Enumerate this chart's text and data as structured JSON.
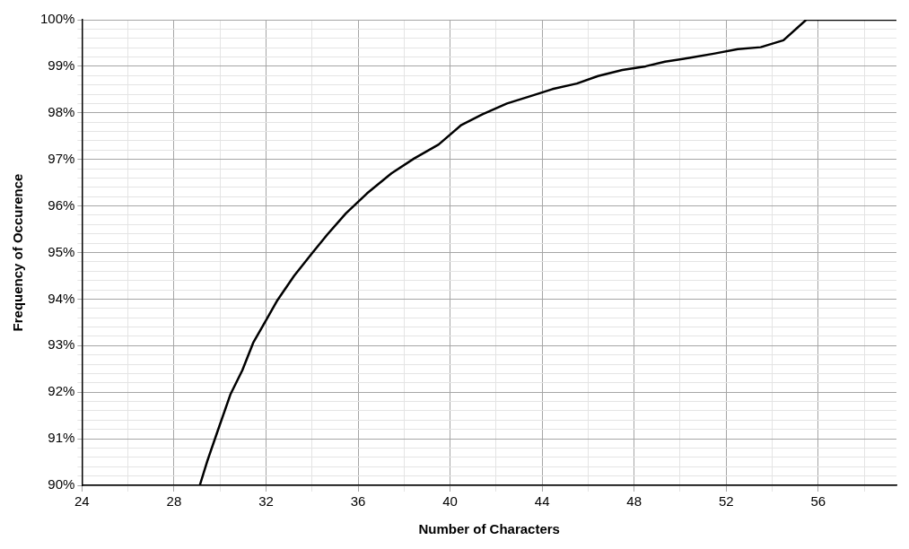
{
  "chart_data": {
    "type": "line",
    "xlabel": "Number of Characters",
    "ylabel": "Frequency of Occurence",
    "x": [
      29.12,
      29.46,
      29.92,
      30.45,
      30.97,
      31.44,
      31.97,
      32.5,
      33.22,
      34.01,
      34.67,
      35.47,
      36.39,
      37.45,
      38.44,
      39.5,
      40.49,
      41.41,
      42.47,
      43.5,
      44.45,
      45.51,
      46.43,
      47.49,
      48.5,
      49.34,
      50.4,
      51.45,
      52.51,
      53.5,
      54.49,
      55.48,
      56.5,
      57.5,
      58.5,
      59.4
    ],
    "series": [
      {
        "color": "#000000",
        "values": [
          90.0,
          90.54,
          91.2,
          91.95,
          92.47,
          93.06,
          93.52,
          93.98,
          94.5,
          94.99,
          95.39,
          95.84,
          96.27,
          96.7,
          97.02,
          97.32,
          97.74,
          97.97,
          98.2,
          98.36,
          98.51,
          98.63,
          98.79,
          98.92,
          99.0,
          99.1,
          99.18,
          99.27,
          99.37,
          99.41,
          99.56,
          100,
          100,
          100,
          100,
          100
        ]
      }
    ],
    "xlim": [
      24,
      59.4
    ],
    "xticks": [
      24,
      {
        "value": 26,
        "label": null
      },
      28,
      {
        "value": 30,
        "label": null
      },
      32,
      {
        "value": 34,
        "label": null
      },
      36,
      {
        "value": 38,
        "label": null
      },
      40,
      {
        "value": 42,
        "label": null
      },
      44,
      {
        "value": 46,
        "label": null
      },
      48,
      {
        "value": 50,
        "label": null
      },
      52,
      {
        "value": 54,
        "label": null
      },
      56,
      {
        "value": 58,
        "label": null
      }
    ],
    "ylim": [
      90,
      100
    ],
    "yticks": [
      {
        "value": 90,
        "label": "90%"
      },
      {
        "value": 90.2,
        "label": null
      },
      {
        "value": 90.4,
        "label": null
      },
      {
        "value": 90.6,
        "label": null
      },
      {
        "value": 90.8,
        "label": null
      },
      {
        "value": 91,
        "label": "91%"
      },
      {
        "value": 91.2,
        "label": null
      },
      {
        "value": 91.4,
        "label": null
      },
      {
        "value": 91.6,
        "label": null
      },
      {
        "value": 91.8,
        "label": null
      },
      {
        "value": 92,
        "label": "92%"
      },
      {
        "value": 92.2,
        "label": null
      },
      {
        "value": 92.4,
        "label": null
      },
      {
        "value": 92.6,
        "label": null
      },
      {
        "value": 92.8,
        "label": null
      },
      {
        "value": 93,
        "label": "93%"
      },
      {
        "value": 93.2,
        "label": null
      },
      {
        "value": 93.4,
        "label": null
      },
      {
        "value": 93.6,
        "label": null
      },
      {
        "value": 93.8,
        "label": null
      },
      {
        "value": 94,
        "label": "94%"
      },
      {
        "value": 94.2,
        "label": null
      },
      {
        "value": 94.4,
        "label": null
      },
      {
        "value": 94.6,
        "label": null
      },
      {
        "value": 94.8,
        "label": null
      },
      {
        "value": 95,
        "label": "95%"
      },
      {
        "value": 95.2,
        "label": null
      },
      {
        "value": 95.4,
        "label": null
      },
      {
        "value": 95.6,
        "label": null
      },
      {
        "value": 95.8,
        "label": null
      },
      {
        "value": 96,
        "label": "96%"
      },
      {
        "value": 96.2,
        "label": null
      },
      {
        "value": 96.4,
        "label": null
      },
      {
        "value": 96.6,
        "label": null
      },
      {
        "value": 96.8,
        "label": null
      },
      {
        "value": 97,
        "label": "97%"
      },
      {
        "value": 97.2,
        "label": null
      },
      {
        "value": 97.4,
        "label": null
      },
      {
        "value": 97.6,
        "label": null
      },
      {
        "value": 97.8,
        "label": null
      },
      {
        "value": 98,
        "label": "98%"
      },
      {
        "value": 98.2,
        "label": null
      },
      {
        "value": 98.4,
        "label": null
      },
      {
        "value": 98.6,
        "label": null
      },
      {
        "value": 98.8,
        "label": null
      },
      {
        "value": 99,
        "label": "99%"
      },
      {
        "value": 99.2,
        "label": null
      },
      {
        "value": 99.4,
        "label": null
      },
      {
        "value": 99.6,
        "label": null
      },
      {
        "value": 99.8,
        "label": null
      },
      {
        "value": 100,
        "label": "100%"
      }
    ],
    "grid": true,
    "legend": false,
    "marker": "none",
    "line_style": "solid"
  }
}
